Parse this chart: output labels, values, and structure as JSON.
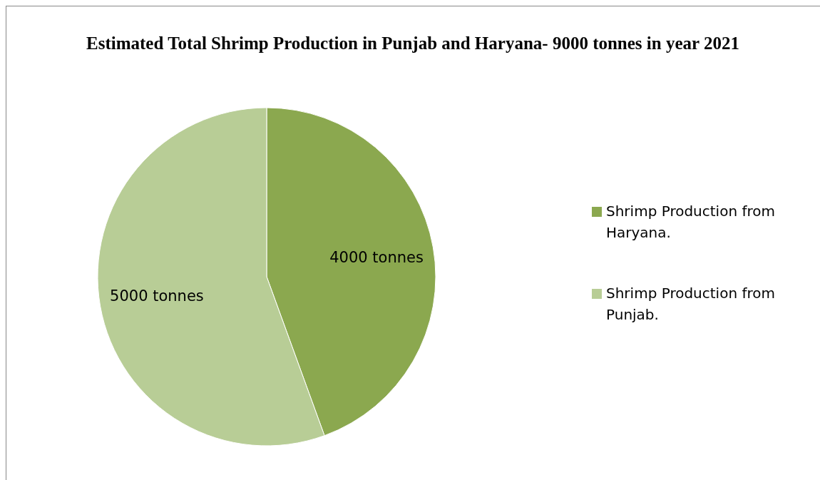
{
  "chart_data": {
    "type": "pie",
    "title": "Estimated Total Shrimp Production in Punjab and Haryana- 9000 tonnes in year 2021",
    "categories": [
      "Shrimp Production from Haryana.",
      "Shrimp Production from Punjab."
    ],
    "values": [
      4000,
      5000
    ],
    "colors": [
      "#8ba84f",
      "#b8cd96"
    ],
    "value_labels": [
      "4000 tonnes",
      "5000 tonnes"
    ],
    "legend": "right"
  }
}
